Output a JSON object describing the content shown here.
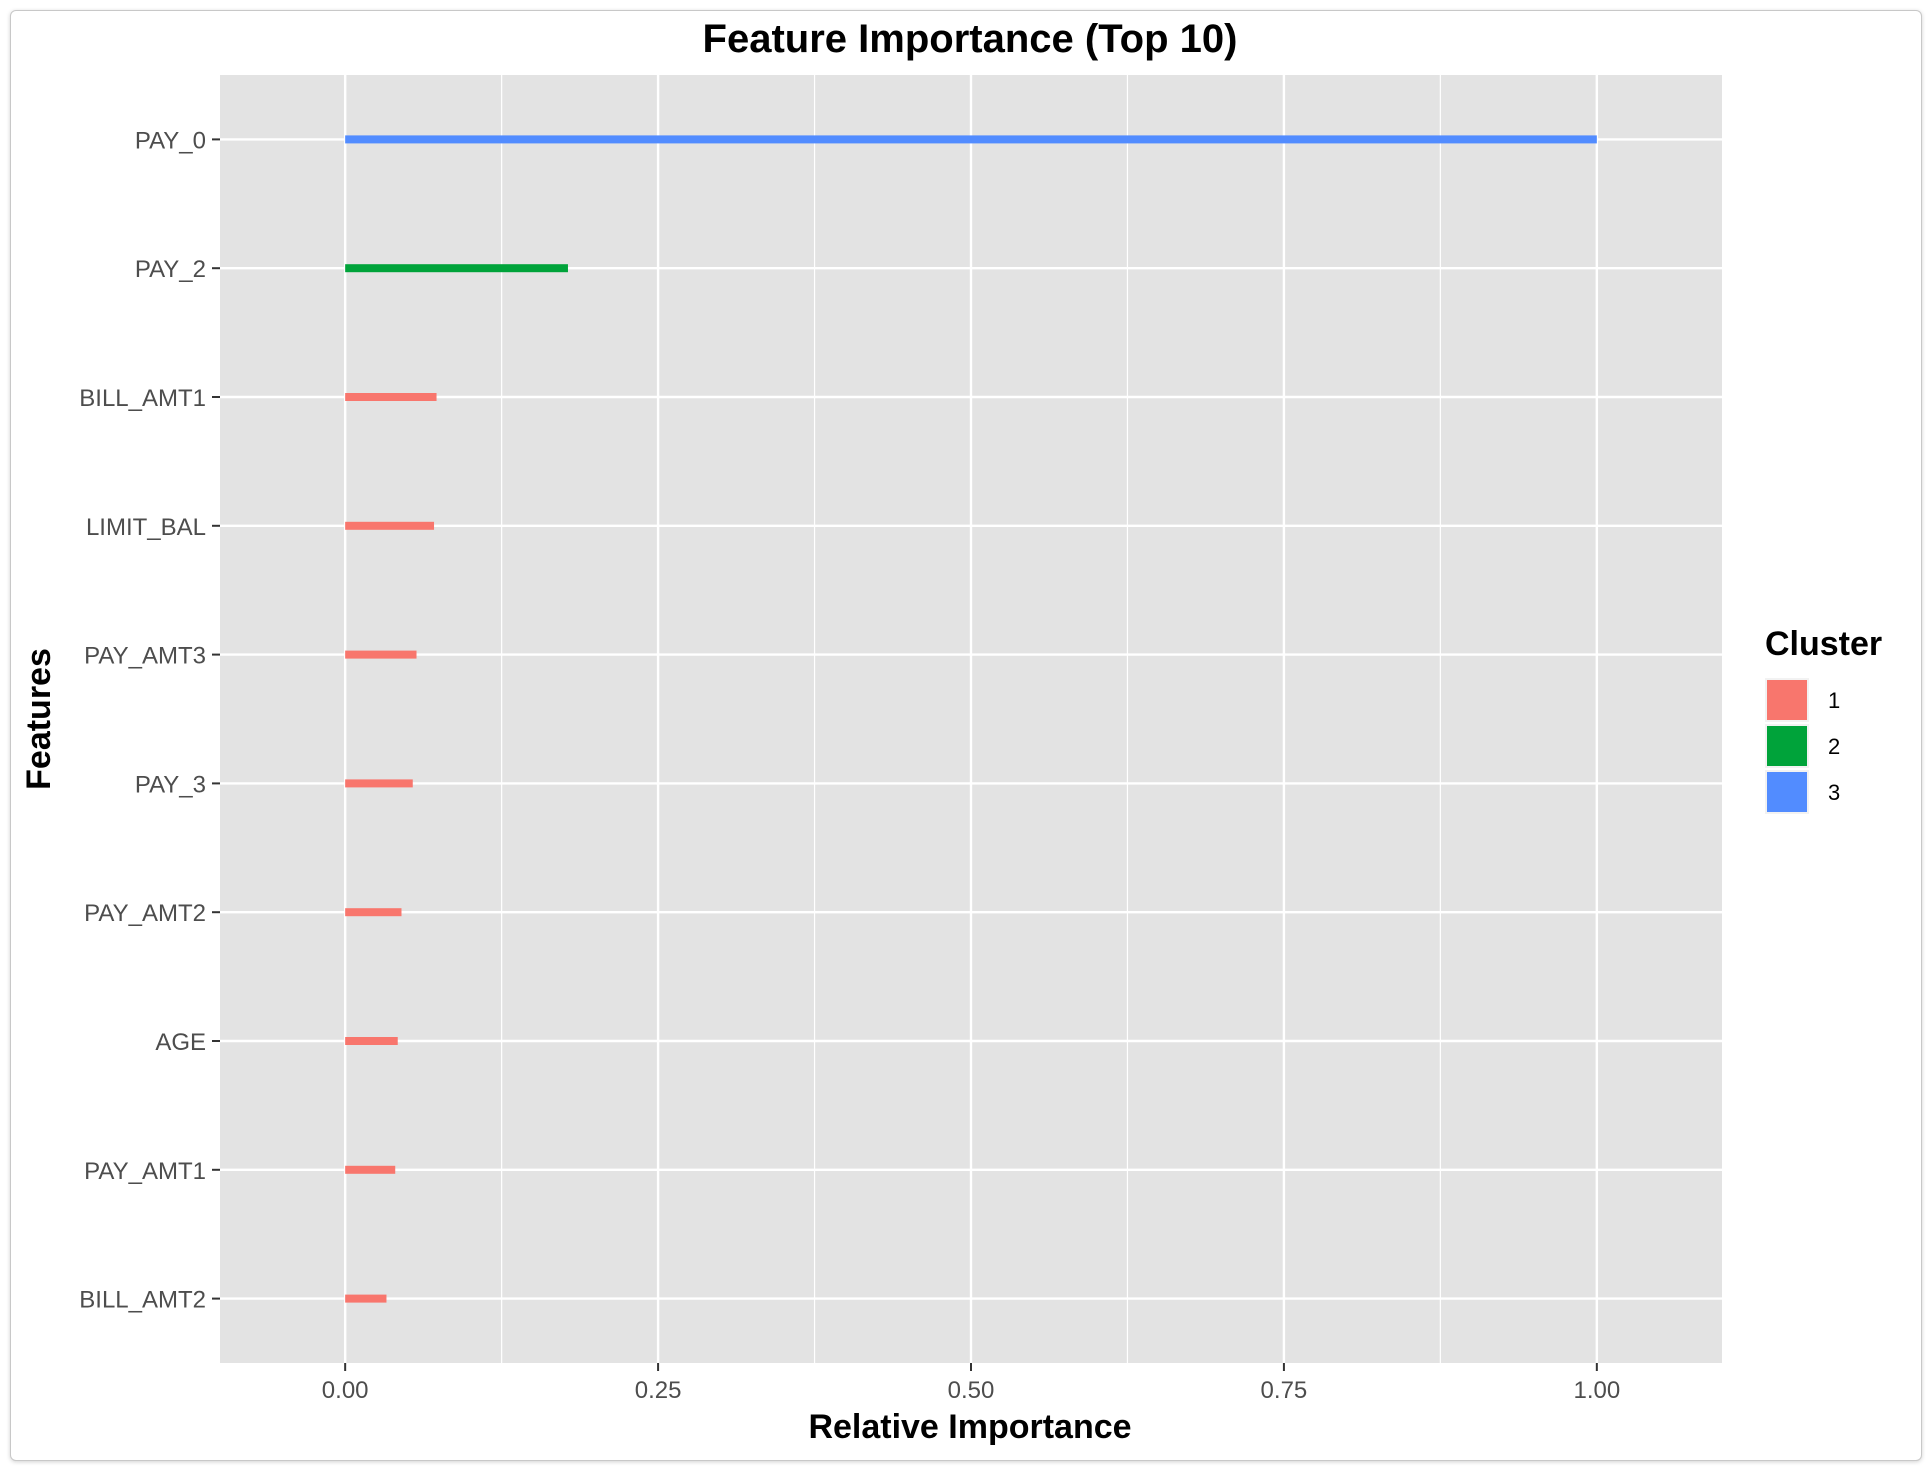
{
  "chart_data": {
    "type": "bar",
    "orientation": "horizontal",
    "title": "Feature Importance (Top 10)",
    "xlabel": "Relative Importance",
    "ylabel": "Features",
    "xlim": [
      -0.1,
      1.1
    ],
    "xticks": [
      "0.00",
      "0.25",
      "0.50",
      "0.75",
      "1.00"
    ],
    "xtick_values": [
      0,
      0.25,
      0.5,
      0.75,
      1.0
    ],
    "grid": true,
    "categories": [
      "PAY_0",
      "PAY_2",
      "BILL_AMT1",
      "LIMIT_BAL",
      "PAY_AMT3",
      "PAY_3",
      "PAY_AMT2",
      "AGE",
      "PAY_AMT1",
      "BILL_AMT2"
    ],
    "values": [
      1.0,
      0.178,
      0.073,
      0.071,
      0.057,
      0.054,
      0.045,
      0.042,
      0.04,
      0.033
    ],
    "clusters": [
      "3",
      "2",
      "1",
      "1",
      "1",
      "1",
      "1",
      "1",
      "1",
      "1"
    ],
    "legend": {
      "title": "Cluster",
      "position": "right",
      "items": [
        {
          "label": "1",
          "color": "#F8766D"
        },
        {
          "label": "2",
          "color": "#00A33A"
        },
        {
          "label": "3",
          "color": "#528CFF"
        }
      ]
    },
    "colors": {
      "panel_background": "#E3E3E3",
      "grid": "#FFFFFF"
    }
  }
}
